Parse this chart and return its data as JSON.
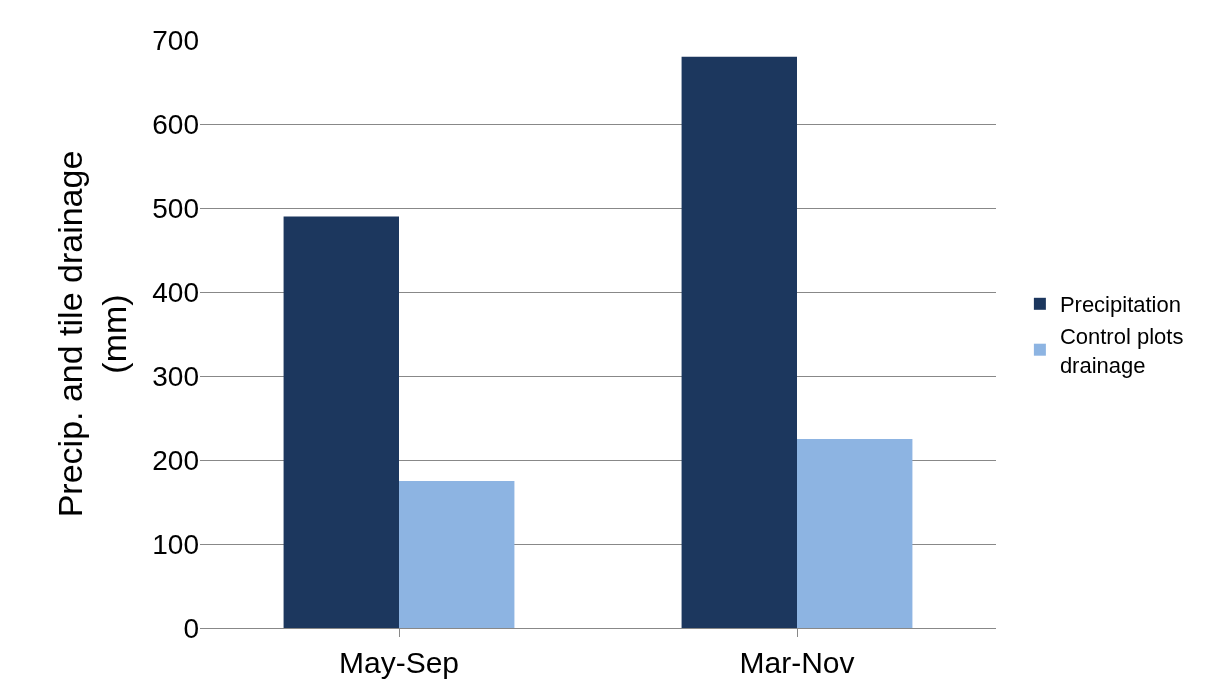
{
  "chart_data": {
    "type": "bar",
    "categories": [
      "May-Sep",
      "Mar-Nov"
    ],
    "series": [
      {
        "name": "Precipitation",
        "color": "#1c375e",
        "values": [
          490,
          680
        ]
      },
      {
        "name": "Control plots\ndrainage",
        "color": "#8db4e2",
        "values": [
          175,
          225
        ]
      }
    ],
    "ylabel": "Precip. and tile drainage\n(mm)",
    "ylim": [
      0,
      700
    ],
    "yticks": [
      0,
      100,
      200,
      300,
      400,
      500,
      600,
      700
    ],
    "grid": "y",
    "legend": "right"
  }
}
